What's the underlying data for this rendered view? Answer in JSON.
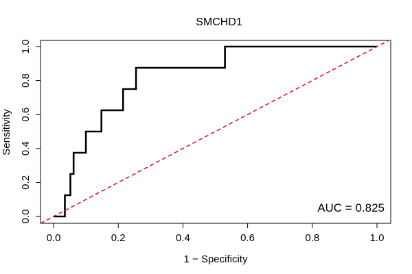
{
  "chart_data": {
    "type": "line",
    "title": "SMCHD1",
    "xlabel": "1 − Specificity",
    "ylabel": "Sensitivity",
    "xlim": [
      0,
      1
    ],
    "ylim": [
      0,
      1
    ],
    "x_ticks": [
      0.0,
      0.2,
      0.4,
      0.6,
      0.8,
      1.0
    ],
    "y_ticks": [
      0.0,
      0.2,
      0.4,
      0.6,
      0.8,
      1.0
    ],
    "x_tick_labels": [
      "0.0",
      "0.2",
      "0.4",
      "0.6",
      "0.8",
      "1.0"
    ],
    "y_tick_labels": [
      "0.0",
      "0.2",
      "0.4",
      "0.6",
      "0.8",
      "1.0"
    ],
    "grid": false,
    "annotation": "AUC = 0.825",
    "series": [
      {
        "style": "solid",
        "color": "#000000",
        "points": [
          [
            0.0,
            0.0
          ],
          [
            0.035,
            0.0
          ],
          [
            0.035,
            0.125
          ],
          [
            0.052,
            0.125
          ],
          [
            0.052,
            0.25
          ],
          [
            0.062,
            0.25
          ],
          [
            0.062,
            0.375
          ],
          [
            0.1,
            0.375
          ],
          [
            0.1,
            0.5
          ],
          [
            0.148,
            0.5
          ],
          [
            0.148,
            0.625
          ],
          [
            0.215,
            0.625
          ],
          [
            0.215,
            0.75
          ],
          [
            0.255,
            0.75
          ],
          [
            0.255,
            0.875
          ],
          [
            0.53,
            0.875
          ],
          [
            0.53,
            1.0
          ],
          [
            1.0,
            1.0
          ]
        ]
      },
      {
        "style": "dashed",
        "color": "#e41a1c",
        "points": [
          [
            -0.04,
            -0.04
          ],
          [
            1.04,
            1.04
          ]
        ]
      }
    ]
  }
}
